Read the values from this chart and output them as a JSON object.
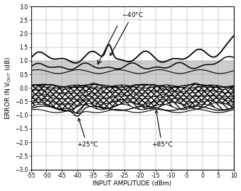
{
  "xlabel": "INPUT AMPLITUDE (dBm)",
  "ylabel": "ERROR IN V$_{OUT}$ (dB)",
  "xlim": [
    -55,
    10
  ],
  "ylim": [
    -3.0,
    3.0
  ],
  "xticks": [
    -55,
    -50,
    -45,
    -40,
    -35,
    -30,
    -25,
    -20,
    -15,
    -10,
    -5,
    0,
    5,
    10
  ],
  "yticks": [
    -3.0,
    -2.5,
    -2.0,
    -1.5,
    -1.0,
    -0.5,
    0.0,
    0.5,
    1.0,
    1.5,
    2.0,
    2.5,
    3.0
  ],
  "shade_y_min": 0.0,
  "shade_y_max": 1.0,
  "shade_color": "#cccccc",
  "background_color": "#ffffff",
  "grid_color": "#999999",
  "line_color": "#000000"
}
